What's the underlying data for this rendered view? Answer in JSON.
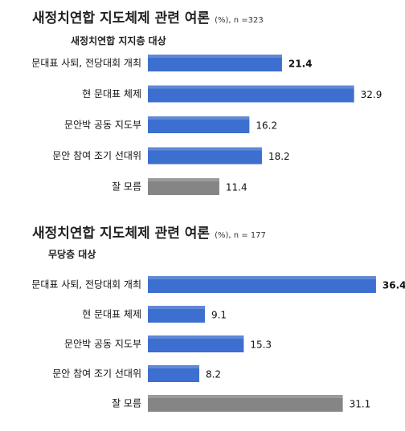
{
  "chart_data": [
    {
      "type": "bar",
      "orientation": "horizontal",
      "title": "새정치연합 지도체제 관련 여론",
      "title_note": "(%), n =323",
      "subtitle": "새정치연합  지지층  대상",
      "categories": [
        "문대표 사퇴, 전당대회 개최",
        "현 문대표 체제",
        "문안박 공동 지도부",
        "문안 참여 조기 선대위",
        "잘 모름"
      ],
      "values": [
        21.4,
        32.9,
        16.2,
        18.2,
        11.4
      ],
      "value_labels": [
        "21.4",
        "32.9",
        "16.2",
        "18.2",
        "11.4"
      ],
      "bold_index": 0,
      "bar_colors": [
        "#3c6fcf",
        "#3c6fcf",
        "#3c6fcf",
        "#3c6fcf",
        "#858585"
      ],
      "xlim": [
        0,
        40
      ],
      "grid": false,
      "legend": "none"
    },
    {
      "type": "bar",
      "orientation": "horizontal",
      "title": "새정치연합 지도체제 관련 여론",
      "title_note": "(%), n = 177",
      "subtitle": "무당층  대상",
      "categories": [
        "문대표 사퇴, 전당대회 개최",
        "현 문대표 체제",
        "문안박 공동 지도부",
        "문안 참여 조기 선대위",
        "잘 모름"
      ],
      "values": [
        36.4,
        9.1,
        15.3,
        8.2,
        31.1
      ],
      "value_labels": [
        "36.4",
        "9.1",
        "15.3",
        "8.2",
        "31.1"
      ],
      "bold_index": 0,
      "bar_colors": [
        "#3c6fcf",
        "#3c6fcf",
        "#3c6fcf",
        "#3c6fcf",
        "#858585"
      ],
      "xlim": [
        0,
        40
      ],
      "grid": false,
      "legend": "none"
    }
  ]
}
